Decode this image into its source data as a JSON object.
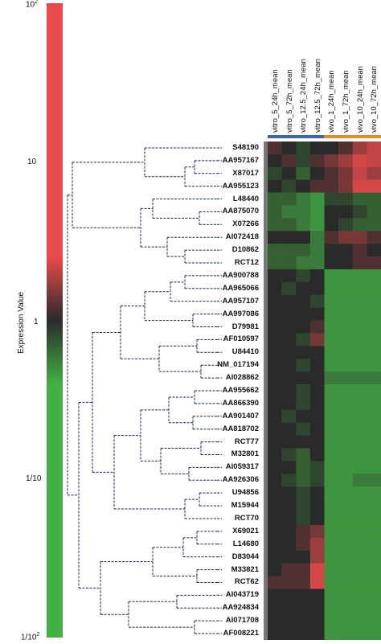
{
  "scale": {
    "title": "Expression Value",
    "ticks": [
      {
        "base": "10",
        "exp": "2",
        "value": 100
      },
      {
        "base": "10",
        "exp": "",
        "value": 10
      },
      {
        "base": "1",
        "exp": "",
        "value": 1
      },
      {
        "base": "1/10",
        "exp": "",
        "value": 0.1
      },
      {
        "base": "1/10",
        "exp": "2",
        "value": 0.01
      }
    ],
    "colors": {
      "high": "#e84b4b",
      "mid": "#2a2a2a",
      "low": "#44b044"
    }
  },
  "columns": [
    "vitro_5_24h_mean",
    "vitro_5_72h_mean",
    "vitro_12.5_24h_mean",
    "vitro_12.5_72h_mean",
    "vivo_1_24h_mean",
    "vivo_1_72h_mean",
    "vivo_10_24h_mean",
    "vivo_10_72h_mean"
  ],
  "groups": [
    {
      "name": "vitro",
      "color": "#3e66a8"
    },
    {
      "name": "vivo",
      "color": "#e28d2e"
    }
  ],
  "genes": [
    "S48190",
    "AA957167",
    "X87017",
    "AA955123",
    "L48440",
    "AA875070",
    "X07266",
    "AI072418",
    "D10862",
    "RCT12",
    "AA900788",
    "AA965066",
    "AA957107",
    "AA997086",
    "D79981",
    "AF010597",
    "U84410",
    "NM_017194",
    "AI028862",
    "AA955662",
    "AA866390",
    "AA901407",
    "AA818702",
    "RCT77",
    "M32801",
    "AI059317",
    "AA926306",
    "U94856",
    "M15944",
    "RCT70",
    "X69021",
    "L14680",
    "D83044",
    "M33821",
    "RCT62",
    "AI043719",
    "AA924834",
    "AI071708",
    "AF008221"
  ],
  "heatmap_values": [
    [
      0.6,
      0.5,
      0.4,
      0.5,
      0.5,
      0.6,
      0.8,
      0.9
    ],
    [
      0.5,
      0.6,
      0.4,
      0.6,
      0.7,
      0.8,
      0.95,
      0.9
    ],
    [
      0.4,
      0.5,
      0.3,
      0.5,
      0.6,
      0.7,
      0.9,
      0.8
    ],
    [
      0.5,
      0.4,
      0.5,
      0.6,
      0.6,
      0.7,
      0.95,
      0.95
    ],
    [
      0.3,
      0.3,
      0.2,
      0.1,
      0.4,
      0.4,
      0.3,
      0.3
    ],
    [
      0.3,
      0.2,
      0.2,
      0.1,
      0.5,
      0.5,
      0.4,
      0.3
    ],
    [
      0.3,
      0.3,
      0.2,
      0.1,
      0.5,
      0.4,
      0.3,
      0.3
    ],
    [
      0.5,
      0.5,
      0.5,
      0.2,
      0.6,
      0.7,
      0.7,
      0.6
    ],
    [
      0.3,
      0.3,
      0.3,
      0.2,
      0.5,
      0.5,
      0.6,
      0.5
    ],
    [
      0.3,
      0.3,
      0.2,
      0.2,
      0.5,
      0.5,
      0.6,
      0.6
    ],
    [
      0.5,
      0.5,
      0.4,
      0.5,
      0.1,
      0.1,
      0.1,
      0.1
    ],
    [
      0.5,
      0.4,
      0.5,
      0.5,
      0.1,
      0.1,
      0.1,
      0.1
    ],
    [
      0.5,
      0.5,
      0.5,
      0.4,
      0.1,
      0.1,
      0.1,
      0.1
    ],
    [
      0.5,
      0.5,
      0.5,
      0.5,
      0.1,
      0.1,
      0.1,
      0.1
    ],
    [
      0.5,
      0.5,
      0.5,
      0.6,
      0.1,
      0.1,
      0.1,
      0.1
    ],
    [
      0.5,
      0.5,
      0.4,
      0.7,
      0.1,
      0.1,
      0.1,
      0.1
    ],
    [
      0.5,
      0.5,
      0.5,
      0.5,
      0.1,
      0.1,
      0.1,
      0.1
    ],
    [
      0.5,
      0.5,
      0.4,
      0.5,
      0.1,
      0.1,
      0.1,
      0.1
    ],
    [
      0.5,
      0.5,
      0.5,
      0.5,
      0.2,
      0.2,
      0.2,
      0.2
    ],
    [
      0.5,
      0.5,
      0.4,
      0.5,
      0.1,
      0.1,
      0.1,
      0.1
    ],
    [
      0.5,
      0.5,
      0.4,
      0.5,
      0.1,
      0.1,
      0.1,
      0.1
    ],
    [
      0.5,
      0.4,
      0.5,
      0.5,
      0.1,
      0.1,
      0.1,
      0.1
    ],
    [
      0.5,
      0.5,
      0.4,
      0.5,
      0.1,
      0.1,
      0.1,
      0.1
    ],
    [
      0.5,
      0.5,
      0.5,
      0.5,
      0.1,
      0.1,
      0.1,
      0.1
    ],
    [
      0.5,
      0.4,
      0.3,
      0.5,
      0.1,
      0.1,
      0.1,
      0.1
    ],
    [
      0.5,
      0.5,
      0.3,
      0.4,
      0.1,
      0.1,
      0.1,
      0.1
    ],
    [
      0.5,
      0.4,
      0.3,
      0.4,
      0.1,
      0.1,
      0.2,
      0.2
    ],
    [
      0.5,
      0.5,
      0.4,
      0.5,
      0.1,
      0.1,
      0.1,
      0.1
    ],
    [
      0.5,
      0.5,
      0.4,
      0.5,
      0.1,
      0.1,
      0.1,
      0.1
    ],
    [
      0.5,
      0.5,
      0.4,
      0.5,
      0.1,
      0.1,
      0.1,
      0.1
    ],
    [
      0.5,
      0.5,
      0.6,
      0.7,
      0.1,
      0.1,
      0.1,
      0.1
    ],
    [
      0.5,
      0.5,
      0.6,
      0.8,
      0.1,
      0.1,
      0.1,
      0.1
    ],
    [
      0.5,
      0.5,
      0.5,
      0.8,
      0.1,
      0.1,
      0.1,
      0.1
    ],
    [
      0.5,
      0.6,
      0.6,
      0.95,
      0.1,
      0.1,
      0.1,
      0.1
    ],
    [
      0.6,
      0.6,
      0.6,
      0.95,
      0.1,
      0.1,
      0.1,
      0.1
    ],
    [
      0.5,
      0.5,
      0.5,
      0.5,
      0.1,
      0.1,
      0.1,
      0.1
    ],
    [
      0.5,
      0.5,
      0.5,
      0.5,
      0.1,
      0.1,
      0.1,
      0.1
    ],
    [
      0.5,
      0.5,
      0.5,
      0.5,
      0.1,
      0.1,
      0.1,
      0.1
    ],
    [
      0.5,
      0.5,
      0.5,
      0.5,
      0.1,
      0.1,
      0.1,
      0.1
    ]
  ]
}
